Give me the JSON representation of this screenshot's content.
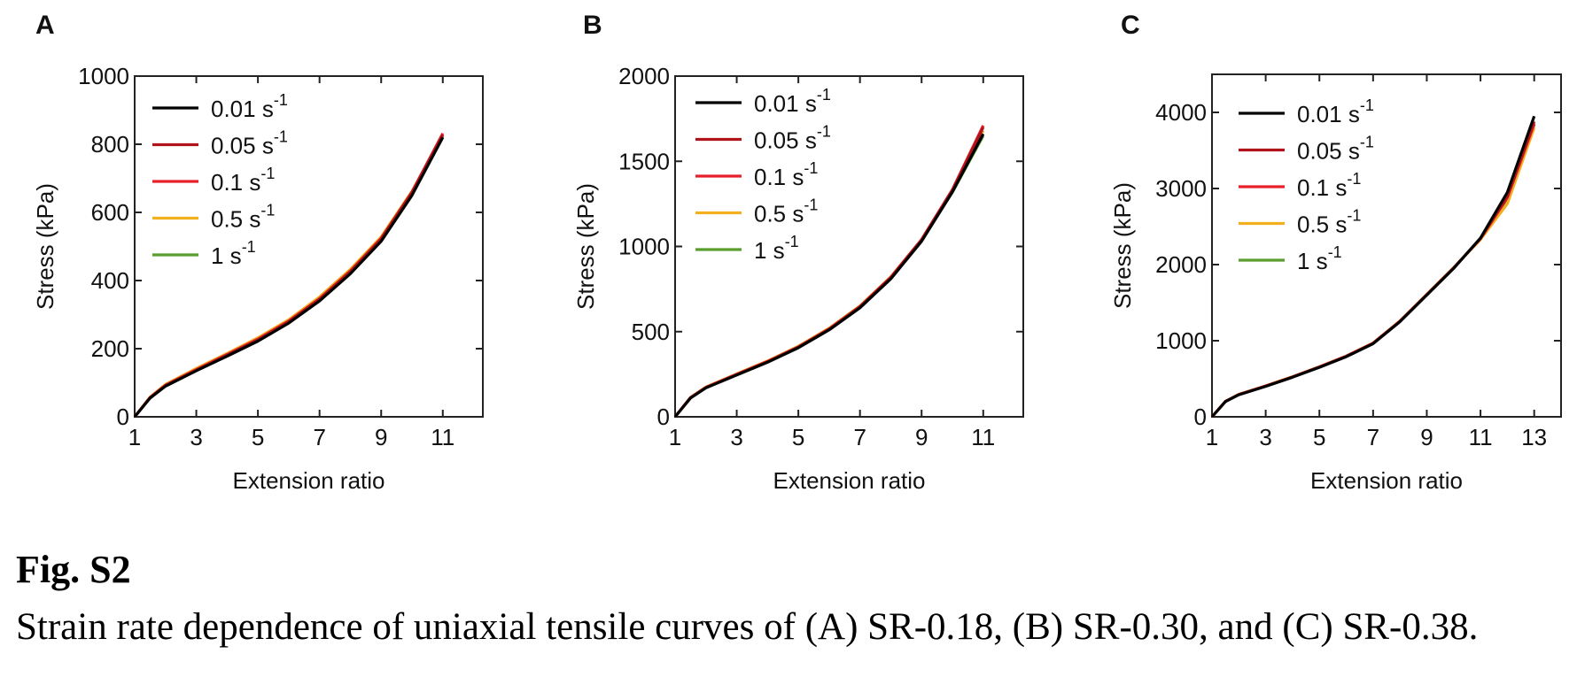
{
  "figure": {
    "label": "Fig. S2",
    "caption": "Strain rate dependence of uniaxial tensile curves of (A) SR-0.18, (B) SR-0.30, and (C) SR-0.38."
  },
  "legend_entries": [
    {
      "rate": "0.01 s",
      "exp": "-1",
      "color": "#000000"
    },
    {
      "rate": "0.05 s",
      "exp": "-1",
      "color": "#b0141a"
    },
    {
      "rate": "0.1 s",
      "exp": "-1",
      "color": "#e8202a"
    },
    {
      "rate": "0.5 s",
      "exp": "-1",
      "color": "#f2b01e"
    },
    {
      "rate": "1 s",
      "exp": "-1",
      "color": "#5a9e2f"
    }
  ],
  "chart_data": [
    {
      "panel": "A",
      "type": "line",
      "xlabel": "Extension ratio",
      "ylabel": "Stress (kPa)",
      "xlim": [
        1,
        12.3
      ],
      "ylim": [
        0,
        1000
      ],
      "xticks": [
        1,
        3,
        5,
        7,
        9,
        11
      ],
      "yticks": [
        0,
        200,
        400,
        600,
        800,
        1000
      ],
      "legend_position": "top-left",
      "series": [
        {
          "name": "0.01 s-1",
          "color": "#000000",
          "x": [
            1,
            1.5,
            2,
            3,
            4,
            5,
            6,
            7,
            8,
            9,
            10,
            11
          ],
          "y": [
            0,
            55,
            90,
            135,
            178,
            222,
            275,
            340,
            420,
            515,
            650,
            820
          ]
        },
        {
          "name": "0.05 s-1",
          "color": "#b0141a",
          "x": [
            1,
            1.5,
            2,
            3,
            4,
            5,
            6,
            7,
            8,
            9,
            10,
            11
          ],
          "y": [
            0,
            56,
            92,
            137,
            181,
            226,
            279,
            345,
            426,
            522,
            658,
            828
          ]
        },
        {
          "name": "0.1 s-1",
          "color": "#e8202a",
          "x": [
            1,
            1.5,
            2,
            3,
            4,
            5,
            6,
            7,
            8,
            9,
            10,
            11
          ],
          "y": [
            0,
            57,
            93,
            139,
            183,
            228,
            281,
            347,
            428,
            524,
            660,
            832
          ]
        },
        {
          "name": "0.5 s-1",
          "color": "#f2b01e",
          "x": [
            1,
            1.5,
            2,
            3,
            4,
            5,
            6,
            7,
            8,
            9,
            10,
            11
          ],
          "y": [
            0,
            58,
            95,
            142,
            186,
            232,
            285,
            352,
            433,
            528,
            662,
            825
          ]
        },
        {
          "name": "1 s-1",
          "color": "#5a9e2f",
          "x": [
            1,
            1.5,
            2,
            3,
            4,
            5,
            6,
            7,
            8,
            9,
            10,
            11
          ],
          "y": [
            0,
            57,
            94,
            140,
            184,
            230,
            283,
            349,
            430,
            525,
            659,
            823
          ]
        }
      ]
    },
    {
      "panel": "B",
      "type": "line",
      "xlabel": "Extension ratio",
      "ylabel": "Stress (kPa)",
      "xlim": [
        1,
        12.3
      ],
      "ylim": [
        0,
        2000
      ],
      "xticks": [
        1,
        3,
        5,
        7,
        9,
        11
      ],
      "yticks": [
        0,
        500,
        1000,
        1500,
        2000
      ],
      "legend_position": "top-left",
      "series": [
        {
          "name": "0.01 s-1",
          "color": "#000000",
          "x": [
            1,
            1.5,
            2,
            3,
            4,
            5,
            6,
            7,
            8,
            9,
            10,
            11
          ],
          "y": [
            0,
            110,
            170,
            245,
            320,
            405,
            510,
            640,
            810,
            1030,
            1320,
            1660
          ]
        },
        {
          "name": "0.05 s-1",
          "color": "#b0141a",
          "x": [
            1,
            1.5,
            2,
            3,
            4,
            5,
            6,
            7,
            8,
            9,
            10,
            11
          ],
          "y": [
            0,
            112,
            172,
            248,
            323,
            409,
            515,
            646,
            817,
            1038,
            1330,
            1700
          ]
        },
        {
          "name": "0.1 s-1",
          "color": "#e8202a",
          "x": [
            1,
            1.5,
            2,
            3,
            4,
            5,
            6,
            7,
            8,
            9,
            10,
            11
          ],
          "y": [
            0,
            113,
            173,
            250,
            325,
            411,
            517,
            648,
            820,
            1041,
            1334,
            1710
          ]
        },
        {
          "name": "0.5 s-1",
          "color": "#f2b01e",
          "x": [
            1,
            1.5,
            2,
            3,
            4,
            5,
            6,
            7,
            8,
            9,
            10,
            11
          ],
          "y": [
            0,
            114,
            175,
            252,
            328,
            414,
            520,
            651,
            822,
            1040,
            1325,
            1680
          ]
        },
        {
          "name": "1 s-1",
          "color": "#5a9e2f",
          "x": [
            1,
            1.5,
            2,
            3,
            4,
            5,
            6,
            7,
            8,
            9,
            10,
            11
          ],
          "y": [
            0,
            113,
            174,
            251,
            326,
            412,
            518,
            649,
            819,
            1036,
            1318,
            1650
          ]
        }
      ]
    },
    {
      "panel": "C",
      "type": "line",
      "xlabel": "Extension ratio",
      "ylabel": "Stress (kPa)",
      "xlim": [
        1,
        14
      ],
      "ylim": [
        0,
        4500
      ],
      "xticks": [
        1,
        3,
        5,
        7,
        9,
        11,
        13
      ],
      "yticks": [
        0,
        1000,
        2000,
        3000,
        4000
      ],
      "legend_position": "top-left",
      "series": [
        {
          "name": "0.01 s-1",
          "color": "#000000",
          "x": [
            1,
            1.5,
            2,
            3,
            4,
            5,
            6,
            7,
            8,
            9,
            10,
            11,
            12,
            13
          ],
          "y": [
            0,
            200,
            290,
            400,
            520,
            650,
            790,
            960,
            1250,
            1600,
            1950,
            2350,
            2950,
            3950
          ]
        },
        {
          "name": "0.05 s-1",
          "color": "#b0141a",
          "x": [
            1,
            1.5,
            2,
            3,
            4,
            5,
            6,
            7,
            8,
            9,
            10,
            11,
            12,
            13
          ],
          "y": [
            0,
            202,
            292,
            403,
            523,
            654,
            794,
            965,
            1255,
            1605,
            1955,
            2345,
            2900,
            3880
          ]
        },
        {
          "name": "0.1 s-1",
          "color": "#e8202a",
          "x": [
            1,
            1.5,
            2,
            3,
            4,
            5,
            6,
            7,
            8,
            9,
            10,
            11,
            12,
            13
          ],
          "y": [
            0,
            203,
            293,
            405,
            525,
            656,
            796,
            968,
            1258,
            1608,
            1958,
            2340,
            2880,
            3850
          ]
        },
        {
          "name": "0.5 s-1",
          "color": "#f2b01e",
          "x": [
            1,
            1.5,
            2,
            3,
            4,
            5,
            6,
            7,
            8,
            9,
            10,
            11,
            12,
            13
          ],
          "y": [
            0,
            204,
            295,
            407,
            527,
            658,
            798,
            970,
            1260,
            1610,
            1960,
            2330,
            2800,
            3800
          ]
        },
        {
          "name": "1 s-1",
          "color": "#5a9e2f",
          "x": [
            1,
            1.5,
            2,
            3,
            4,
            5,
            6,
            7,
            8,
            9,
            10,
            11,
            12,
            13
          ],
          "y": [
            0,
            203,
            294,
            406,
            526,
            657,
            797,
            969,
            1259,
            1609,
            1959,
            2338,
            2870,
            3840
          ]
        }
      ]
    }
  ]
}
